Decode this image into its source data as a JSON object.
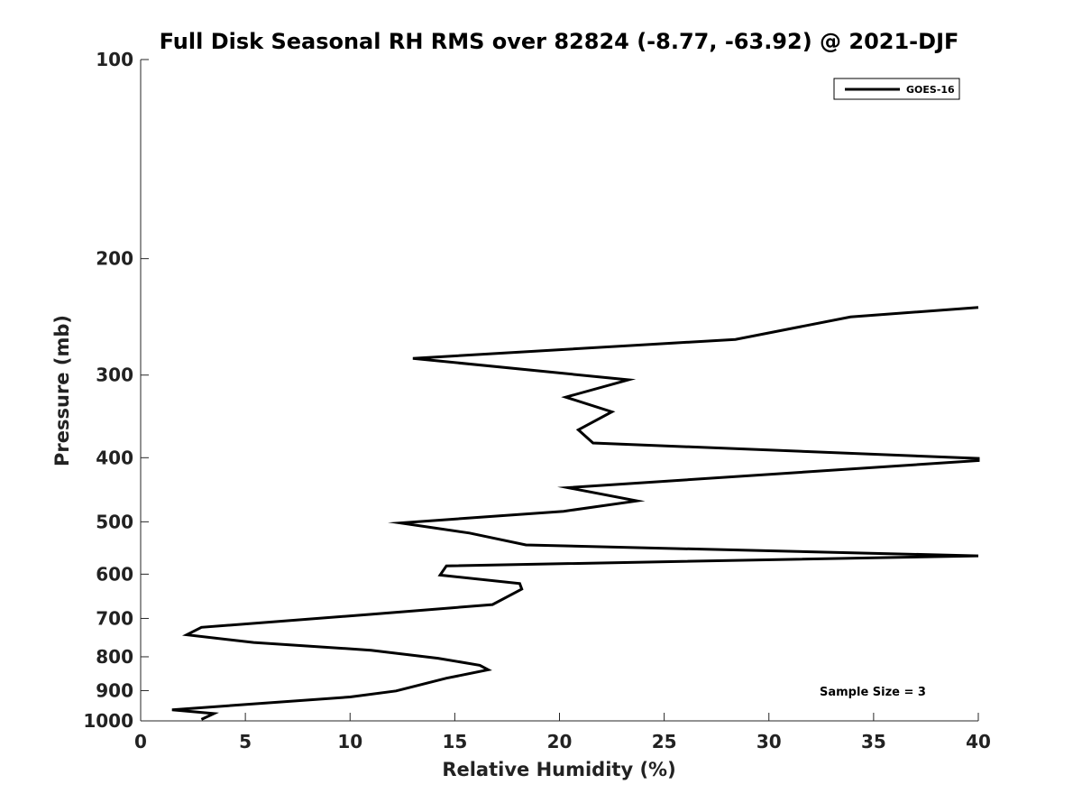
{
  "chart_data": {
    "type": "line",
    "title": "Full Disk Seasonal RH RMS over 82824 (-8.77, -63.92) @ 2021-DJF",
    "xlabel": "Relative Humidity (%)",
    "ylabel": "Pressure (mb)",
    "xlim": [
      0,
      40
    ],
    "ylim": [
      100,
      1000
    ],
    "y_scale": "log",
    "y_inverted": true,
    "xticks": [
      0,
      5,
      10,
      15,
      20,
      25,
      30,
      35,
      40
    ],
    "yticks": [
      100,
      200,
      300,
      400,
      500,
      600,
      700,
      800,
      900,
      1000
    ],
    "grid": false,
    "legend_position": "top-right",
    "annotation": "Sample Size = 3",
    "series": [
      {
        "name": "GOES-16",
        "color": "#000000",
        "points": [
          [
            40.0,
            237
          ],
          [
            33.9,
            245
          ],
          [
            28.4,
            265
          ],
          [
            13.0,
            283
          ],
          [
            23.3,
            305
          ],
          [
            20.3,
            324
          ],
          [
            22.5,
            341
          ],
          [
            20.9,
            363
          ],
          [
            21.6,
            380
          ],
          [
            40.0,
            401
          ],
          [
            40.0,
            404
          ],
          [
            20.4,
            444
          ],
          [
            23.7,
            465
          ],
          [
            20.2,
            482
          ],
          [
            12.4,
            502
          ],
          [
            15.7,
            520
          ],
          [
            18.4,
            542
          ],
          [
            40.0,
            563
          ],
          [
            14.6,
            583
          ],
          [
            14.3,
            602
          ],
          [
            18.1,
            620
          ],
          [
            18.2,
            632
          ],
          [
            16.8,
            667
          ],
          [
            11.0,
            690
          ],
          [
            2.9,
            722
          ],
          [
            2.2,
            741
          ],
          [
            5.4,
            761
          ],
          [
            11.0,
            782
          ],
          [
            14.2,
            804
          ],
          [
            16.2,
            824
          ],
          [
            16.6,
            837
          ],
          [
            14.6,
            862
          ],
          [
            12.2,
            901
          ],
          [
            10.0,
            920
          ],
          [
            1.5,
            962
          ],
          [
            3.5,
            975
          ],
          [
            2.9,
            995
          ]
        ]
      }
    ]
  }
}
